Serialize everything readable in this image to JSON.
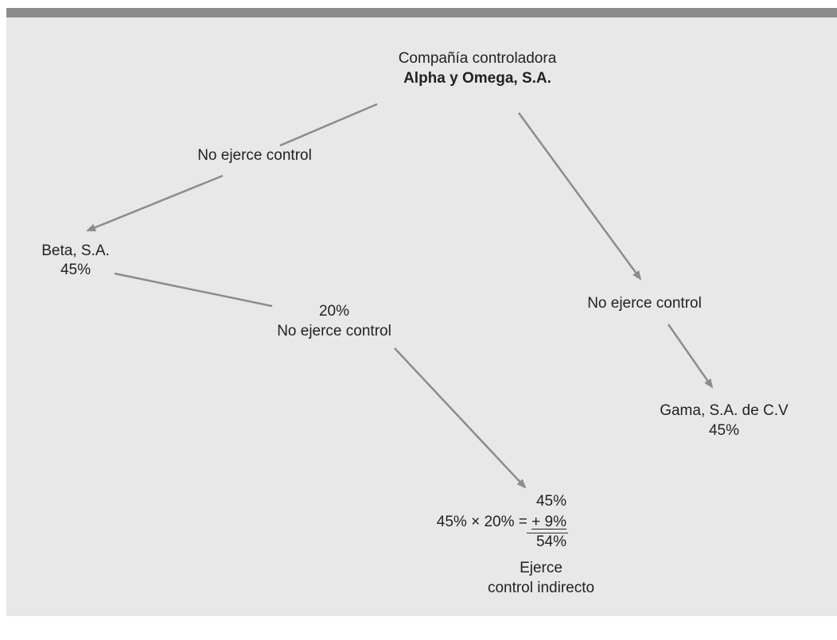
{
  "top": {
    "title": "Compañía controladora",
    "company": "Alpha y Omega, S.A."
  },
  "left_branch": {
    "edge_label": "No ejerce control",
    "node_name": "Beta, S.A.",
    "node_pct": "45%"
  },
  "right_branch": {
    "edge_label": "No ejerce control",
    "node_name": "Gama, S.A. de C.V",
    "node_pct": "45%"
  },
  "mid_branch": {
    "pct": "20%",
    "edge_label": "No ejerce control"
  },
  "result": {
    "line1": "45%",
    "formula": "45% × 20% =",
    "addend": "+ 9%",
    "total": "54%",
    "conclusion_line1": "Ejerce",
    "conclusion_line2": "control indirecto"
  },
  "colors": {
    "arrow": "#8c8c8c",
    "panel": "#e8e8e8",
    "bar": "#8c8c8c"
  }
}
